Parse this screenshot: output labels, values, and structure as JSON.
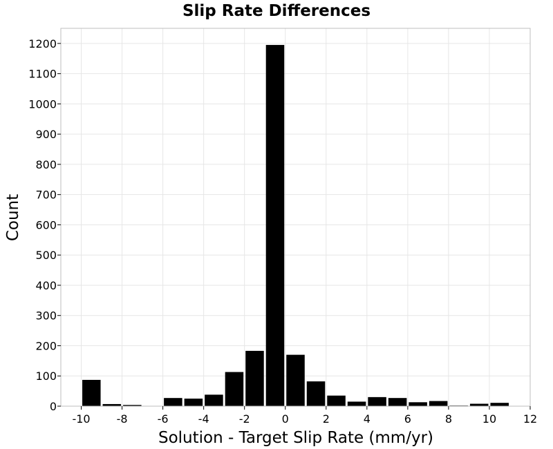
{
  "chart_data": {
    "type": "bar",
    "title": "Slip Rate Differences",
    "xlabel": "Solution - Target Slip Rate (mm/yr)",
    "ylabel": "Count",
    "xlim": [
      -11,
      12
    ],
    "ylim": [
      0,
      1250
    ],
    "xticks": [
      -10,
      -8,
      -6,
      -4,
      -2,
      0,
      2,
      4,
      6,
      8,
      10,
      12
    ],
    "xtick_labels": [
      "-10",
      "-8",
      "-6",
      "-4",
      "-2",
      "0",
      "2",
      "4",
      "6",
      "8",
      "10",
      "12"
    ],
    "yticks": [
      0,
      100,
      200,
      300,
      400,
      500,
      600,
      700,
      800,
      900,
      1000,
      1100,
      1200
    ],
    "ytick_labels": [
      "0",
      "100",
      "200",
      "300",
      "400",
      "500",
      "600",
      "700",
      "800",
      "900",
      "1000",
      "1100",
      "1200"
    ],
    "bin_width": 1,
    "bin_centers": [
      -9.5,
      -8.5,
      -7.5,
      -6.5,
      -5.5,
      -4.5,
      -3.5,
      -2.5,
      -1.5,
      -0.5,
      0.5,
      1.5,
      2.5,
      3.5,
      4.5,
      5.5,
      6.5,
      7.5,
      8.5,
      9.5,
      10.5
    ],
    "values": [
      87,
      7,
      4,
      0,
      27,
      25,
      38,
      113,
      183,
      1195,
      170,
      82,
      35,
      15,
      30,
      27,
      13,
      17,
      2,
      8,
      11
    ],
    "grid": true,
    "bar_color": "#000000"
  }
}
